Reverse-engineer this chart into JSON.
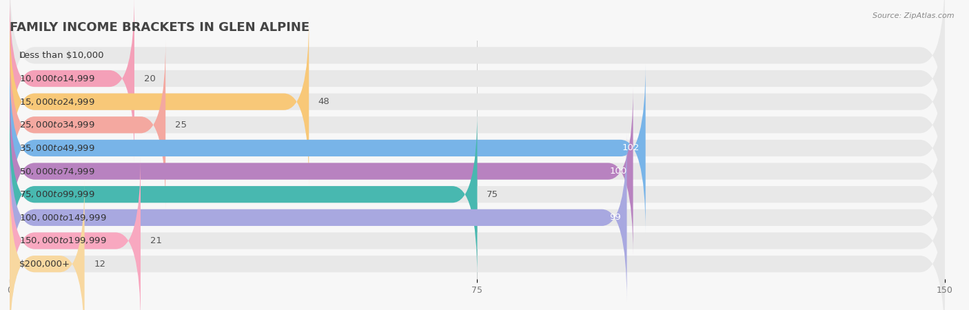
{
  "title": "FAMILY INCOME BRACKETS IN GLEN ALPINE",
  "source": "Source: ZipAtlas.com",
  "categories": [
    "Less than $10,000",
    "$10,000 to $14,999",
    "$15,000 to $24,999",
    "$25,000 to $34,999",
    "$35,000 to $49,999",
    "$50,000 to $74,999",
    "$75,000 to $99,999",
    "$100,000 to $149,999",
    "$150,000 to $199,999",
    "$200,000+"
  ],
  "values": [
    0,
    20,
    48,
    25,
    102,
    100,
    75,
    99,
    21,
    12
  ],
  "bar_colors": [
    "#b0aed8",
    "#f4a0b8",
    "#f8c878",
    "#f4a8a0",
    "#78b4e8",
    "#b882c0",
    "#48b8b0",
    "#a8a8e0",
    "#f8a8c0",
    "#f8d8a0"
  ],
  "xlim": [
    0,
    150
  ],
  "xticks": [
    0,
    75,
    150
  ],
  "background_color": "#f7f7f7",
  "bar_background_color": "#e8e8e8",
  "title_fontsize": 13,
  "label_fontsize": 9.5,
  "value_fontsize": 9.5,
  "value_threshold_inside": 90
}
